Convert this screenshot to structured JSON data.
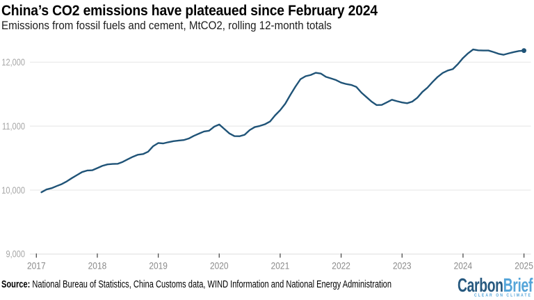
{
  "header": {
    "title": "China’s CO2 emissions have plateaued since February 2024",
    "subtitle": "Emissions from fossil fuels and cement, MtCO2, rolling 12-month totals"
  },
  "footer": {
    "source_label": "Source:",
    "source_text": " National Bureau of Statistics, China Customs data, WIND Information and National Energy Administration"
  },
  "logo": {
    "word_part1": "Carbon",
    "word_part2": "Brief",
    "tagline": "CLEAR ON CLIMATE",
    "color_part1": "#27597f",
    "color_part2": "#55a5d9"
  },
  "chart_data": {
    "type": "line",
    "title": "China’s CO2 emissions have plateaued since February 2024",
    "subtitle": "Emissions from fossil fuels and cement, MtCO2, rolling 12-month totals",
    "unit": "MtCO2",
    "frequency": "monthly",
    "start_month": "2017-02",
    "end_month": "2025-01",
    "x_tick_labels": [
      "2017",
      "2018",
      "2019",
      "2020",
      "2021",
      "2022",
      "2023",
      "2024",
      "2025"
    ],
    "y_tick_labels": [
      "9,000",
      "10,000",
      "11,000",
      "12,000"
    ],
    "y_tick_values": [
      9000,
      10000,
      11000,
      12000
    ],
    "ylim": [
      9000,
      12300
    ],
    "grid": true,
    "legend": false,
    "line_color": "#1f5377",
    "end_dot": true,
    "series": [
      {
        "name": "CO2 emissions, rolling 12-month total (MtCO2)",
        "values": [
          9966,
          10010,
          10030,
          10063,
          10094,
          10137,
          10188,
          10235,
          10282,
          10306,
          10310,
          10344,
          10379,
          10402,
          10408,
          10411,
          10441,
          10482,
          10521,
          10553,
          10563,
          10600,
          10687,
          10736,
          10730,
          10749,
          10765,
          10774,
          10782,
          10806,
          10848,
          10882,
          10916,
          10928,
          10991,
          11026,
          10956,
          10886,
          10844,
          10842,
          10865,
          10938,
          10985,
          11003,
          11029,
          11072,
          11168,
          11249,
          11350,
          11488,
          11617,
          11734,
          11780,
          11799,
          11834,
          11822,
          11771,
          11746,
          11720,
          11680,
          11658,
          11644,
          11613,
          11523,
          11453,
          11383,
          11329,
          11332,
          11372,
          11412,
          11390,
          11370,
          11358,
          11383,
          11444,
          11535,
          11602,
          11690,
          11769,
          11831,
          11869,
          11892,
          11971,
          12065,
          12139,
          12199,
          12185,
          12182,
          12182,
          12158,
          12131,
          12116,
          12138,
          12158,
          12174,
          12181
        ]
      }
    ]
  }
}
